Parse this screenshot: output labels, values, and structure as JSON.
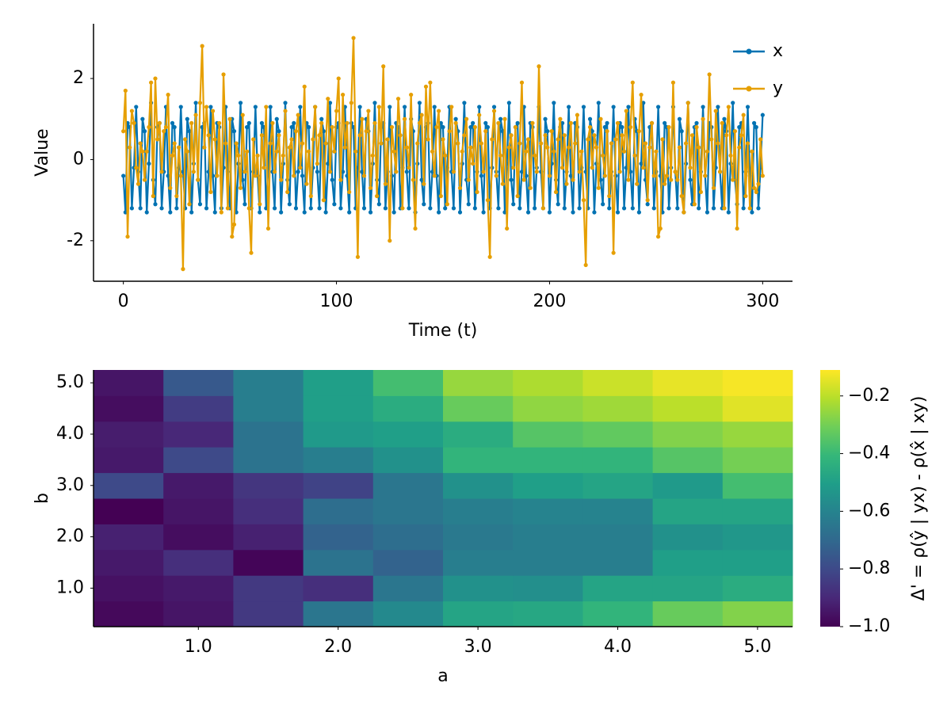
{
  "chart_data": [
    {
      "type": "line",
      "xlabel": "Time (t)",
      "ylabel": "Value",
      "xlim": [
        -14,
        314
      ],
      "ylim": [
        -3.0,
        3.35
      ],
      "xticks": [
        0,
        100,
        200,
        300
      ],
      "yticks": [
        -2,
        0,
        2
      ],
      "legend": "top-right",
      "x": [
        0,
        1,
        2,
        3,
        4,
        5,
        6,
        7,
        8,
        9,
        10,
        11,
        12,
        13,
        14,
        15,
        16,
        17,
        18,
        19,
        20,
        21,
        22,
        23,
        24,
        25,
        26,
        27,
        28,
        29,
        30,
        31,
        32,
        33,
        34,
        35,
        36,
        37,
        38,
        39,
        40,
        41,
        42,
        43,
        44,
        45,
        46,
        47,
        48,
        49,
        50,
        51,
        52,
        53,
        54,
        55,
        56,
        57,
        58,
        59,
        60,
        61,
        62,
        63,
        64,
        65,
        66,
        67,
        68,
        69,
        70,
        71,
        72,
        73,
        74,
        75,
        76,
        77,
        78,
        79,
        80,
        81,
        82,
        83,
        84,
        85,
        86,
        87,
        88,
        89,
        90,
        91,
        92,
        93,
        94,
        95,
        96,
        97,
        98,
        99,
        100,
        101,
        102,
        103,
        104,
        105,
        106,
        107,
        108,
        109,
        110,
        111,
        112,
        113,
        114,
        115,
        116,
        117,
        118,
        119,
        120,
        121,
        122,
        123,
        124,
        125,
        126,
        127,
        128,
        129,
        130,
        131,
        132,
        133,
        134,
        135,
        136,
        137,
        138,
        139,
        140,
        141,
        142,
        143,
        144,
        145,
        146,
        147,
        148,
        149,
        150,
        151,
        152,
        153,
        154,
        155,
        156,
        157,
        158,
        159,
        160,
        161,
        162,
        163,
        164,
        165,
        166,
        167,
        168,
        169,
        170,
        171,
        172,
        173,
        174,
        175,
        176,
        177,
        178,
        179,
        180,
        181,
        182,
        183,
        184,
        185,
        186,
        187,
        188,
        189,
        190,
        191,
        192,
        193,
        194,
        195,
        196,
        197,
        198,
        199,
        200,
        201,
        202,
        203,
        204,
        205,
        206,
        207,
        208,
        209,
        210,
        211,
        212,
        213,
        214,
        215,
        216,
        217,
        218,
        219,
        220,
        221,
        222,
        223,
        224,
        225,
        226,
        227,
        228,
        229,
        230,
        231,
        232,
        233,
        234,
        235,
        236,
        237,
        238,
        239,
        240,
        241,
        242,
        243,
        244,
        245,
        246,
        247,
        248,
        249,
        250,
        251,
        252,
        253,
        254,
        255,
        256,
        257,
        258,
        259,
        260,
        261,
        262,
        263,
        264,
        265,
        266,
        267,
        268,
        269,
        270,
        271,
        272,
        273,
        274,
        275,
        276,
        277,
        278,
        279,
        280,
        281,
        282,
        283,
        284,
        285,
        286,
        287,
        288,
        289,
        290,
        291,
        292,
        293,
        294,
        295,
        296,
        297,
        298,
        299,
        300
      ],
      "series": [
        {
          "name": "x",
          "color": "#0072b2",
          "values": [
            -0.4,
            -1.3,
            0.9,
            0.8,
            -1.2,
            -0.2,
            1.3,
            -0.3,
            -1.2,
            1.0,
            0.7,
            -1.3,
            -0.1,
            1.4,
            -0.5,
            -1.1,
            0.8,
            0.9,
            -1.2,
            -0.3,
            1.3,
            -0.4,
            -1.3,
            0.9,
            0.8,
            -1.2,
            -0.2,
            1.3,
            -0.3,
            -1.2,
            1.0,
            0.7,
            -1.3,
            -0.1,
            1.4,
            -0.5,
            -1.1,
            0.8,
            0.9,
            -1.2,
            -0.3,
            1.3,
            -0.4,
            -1.3,
            0.9,
            0.8,
            -1.2,
            -0.2,
            1.3,
            -0.3,
            -1.2,
            1.0,
            0.7,
            -1.3,
            -0.1,
            1.4,
            -0.5,
            -1.1,
            0.8,
            0.9,
            -1.2,
            -0.3,
            1.3,
            -0.4,
            -1.3,
            0.9,
            0.8,
            -1.2,
            -0.2,
            1.3,
            -0.3,
            -1.2,
            1.0,
            0.7,
            -1.3,
            -0.1,
            1.4,
            -0.5,
            -1.1,
            0.8,
            0.9,
            -1.2,
            -0.3,
            1.3,
            -0.4,
            -1.3,
            0.9,
            0.8,
            -1.2,
            -0.2,
            1.3,
            -0.3,
            -1.2,
            1.0,
            0.7,
            -1.3,
            -0.1,
            1.4,
            -0.5,
            -1.1,
            0.8,
            0.9,
            -1.2,
            -0.3,
            1.3,
            -0.4,
            -1.3,
            0.9,
            0.8,
            -1.2,
            -0.2,
            1.3,
            -0.3,
            -1.2,
            1.0,
            0.7,
            -1.3,
            -0.1,
            1.4,
            -0.5,
            -1.1,
            0.8,
            0.9,
            -1.2,
            -0.3,
            1.3,
            -0.4,
            -1.3,
            0.9,
            0.8,
            -1.2,
            -0.2,
            1.3,
            -0.3,
            -1.2,
            1.0,
            0.7,
            -1.3,
            -0.1,
            1.4,
            -0.5,
            -1.1,
            0.8,
            0.9,
            -1.2,
            -0.3,
            1.3,
            -0.4,
            -1.3,
            0.9,
            0.8,
            -1.2,
            -0.2,
            1.3,
            -0.3,
            -1.2,
            1.0,
            0.7,
            -1.3,
            -0.1,
            1.4,
            -0.5,
            -1.1,
            0.8,
            0.9,
            -1.2,
            -0.3,
            1.3,
            -0.4,
            -1.3,
            0.9,
            0.8,
            -1.2,
            -0.2,
            1.3,
            -0.3,
            -1.2,
            1.0,
            0.7,
            -1.3,
            -0.1,
            1.4,
            -0.5,
            -1.1,
            0.8,
            0.9,
            -1.2,
            -0.3,
            1.3,
            -0.4,
            -1.3,
            0.9,
            0.8,
            -1.2,
            -0.2,
            1.3,
            -0.3,
            -1.2,
            1.0,
            0.7,
            -1.3,
            -0.1,
            1.4,
            -0.5,
            -1.1,
            0.8,
            0.9,
            -1.2,
            -0.3,
            1.3,
            -0.4,
            -1.3,
            0.9,
            0.8,
            -1.2,
            -0.2,
            1.3,
            -0.3,
            -1.2,
            1.0,
            0.7,
            -1.3,
            -0.1,
            1.4,
            -0.5,
            -1.1,
            0.8,
            0.9,
            -1.2,
            -0.3,
            1.3,
            -0.4,
            -1.3,
            0.9,
            0.8,
            -1.2,
            -0.2,
            1.3,
            -0.3,
            -1.2,
            1.0,
            0.7,
            -1.3,
            -0.1,
            1.4,
            -0.5,
            -1.1,
            0.8,
            0.9,
            -1.2,
            -0.3,
            1.3,
            -0.4,
            -1.3,
            0.9,
            0.8,
            -1.2,
            -0.2,
            1.3,
            -0.3,
            -1.2,
            1.0,
            0.7,
            -1.3,
            -0.1,
            1.4,
            -0.5,
            -1.1,
            0.8,
            0.9,
            -1.2,
            -0.3,
            1.3,
            -0.4,
            -1.3,
            0.9,
            0.8,
            -1.2,
            -0.2,
            1.3,
            -0.3,
            -1.2,
            1.0,
            0.7,
            -1.3,
            -0.1,
            1.4,
            -0.5,
            -1.1,
            0.8,
            0.9,
            -1.2,
            -0.3,
            1.3,
            -0.4,
            -1.3,
            0.9,
            0.8,
            -1.2,
            -0.2,
            1.1
          ]
        },
        {
          "name": "y",
          "color": "#e69f00",
          "values": [
            0.7,
            1.7,
            -1.9,
            0.3,
            1.2,
            0.9,
            -0.2,
            -0.6,
            0.4,
            0.2,
            -0.5,
            0.2,
            0.8,
            1.9,
            -0.9,
            2.0,
            0.5,
            0.9,
            -0.3,
            0.7,
            0.8,
            1.6,
            -0.7,
            0.1,
            0.4,
            -0.9,
            0.3,
            -0.4,
            -2.7,
            0.5,
            0.2,
            -1.1,
            0.9,
            -0.3,
            1.1,
            -0.5,
            1.4,
            2.8,
            0.3,
            1.3,
            0.6,
            -0.8,
            1.2,
            0.5,
            -0.4,
            0.9,
            -1.3,
            2.1,
            0.4,
            -1.2,
            1.0,
            -1.9,
            -1.6,
            0.4,
            0.1,
            -0.7,
            1.1,
            -0.3,
            0.2,
            -1.2,
            -2.3,
            0.5,
            -0.4,
            0.1,
            -1.1,
            0.6,
            -0.2,
            1.3,
            -1.7,
            0.4,
            0.9,
            -0.3,
            0.2,
            0.6,
            -0.5,
            0.1,
            1.2,
            -0.8,
            0.3,
            0.5,
            -0.4,
            0.7,
            1.1,
            -0.2,
            0.4,
            1.8,
            -0.6,
            0.2,
            -0.9,
            0.5,
            1.3,
            -0.1,
            0.6,
            0.9,
            -1.0,
            0.4,
            1.5,
            -0.3,
            0.8,
            0.2,
            1.2,
            2.0,
            -0.5,
            1.6,
            0.3,
            0.9,
            -0.8,
            1.4,
            3.0,
            0.2,
            -2.4,
            0.6,
            1.0,
            -0.4,
            0.7,
            1.2,
            -0.7,
            0.1,
            0.9,
            -0.9,
            1.3,
            0.4,
            2.3,
            -0.6,
            0.5,
            -2.0,
            0.8,
            0.2,
            -0.3,
            1.5,
            0.6,
            -1.2,
            1.0,
            0.3,
            -0.2,
            1.6,
            -0.5,
            -1.7,
            0.4,
            0.9,
            1.1,
            -0.6,
            1.8,
            0.5,
            1.9,
            0.2,
            -0.4,
            0.8,
            1.2,
            -0.9,
            0.5,
            0.1,
            -1.1,
            0.7,
            1.3,
            -0.3,
            0.9,
            0.4,
            -0.7,
            0.2,
            0.6,
            1.0,
            -0.5,
            0.3,
            -0.1,
            0.8,
            -0.8,
            1.1,
            0.4,
            -0.3,
            0.7,
            -1.0,
            -2.4,
            0.5,
            1.2,
            -0.4,
            0.9,
            0.1,
            -0.6,
            1.0,
            -1.7,
            0.3,
            0.6,
            -0.2,
            0.8,
            -0.9,
            0.4,
            1.9,
            -0.5,
            0.2,
            0.5,
            -0.7,
            0.9,
            0.1,
            -0.3,
            2.3,
            0.4,
            -1.2,
            0.6,
            0.3,
            -0.4,
            0.7,
            0.2,
            -0.8,
            0.5,
            1.0,
            -0.2,
            0.6,
            -0.6,
            0.3,
            0.9,
            -0.5,
            0.4,
            1.1,
            -0.3,
            0.2,
            -1.0,
            -2.6,
            0.5,
            0.8,
            -0.2,
            0.6,
            0.3,
            -0.7,
            1.0,
            0.1,
            -0.4,
            0.7,
            -0.9,
            0.4,
            -2.3,
            0.5,
            0.9,
            -0.3,
            0.6,
            0.2,
            1.2,
            -0.5,
            0.8,
            1.9,
            0.1,
            -0.6,
            0.7,
            1.6,
            -0.2,
            0.4,
            -1.0,
            0.3,
            0.9,
            -0.4,
            0.2,
            -1.9,
            -1.7,
            0.5,
            -0.6,
            -0.4,
            0.8,
            -0.5,
            1.9,
            -0.3,
            -0.5,
            0.3,
            -0.9,
            -1.3,
            0.4,
            1.4,
            -0.2,
            0.6,
            -1.1,
            0.8,
            0.3,
            -0.8,
            1.0,
            -0.4,
            0.2,
            2.1,
            0.5,
            -0.7,
            1.2,
            0.4,
            -0.3,
            0.9,
            -1.2,
            0.6,
            1.3,
            0.1,
            -0.5,
            0.7,
            -1.7,
            0.3,
            0.6,
            1.1,
            -0.9,
            0.4,
            -1.2,
            0.2,
            -0.7,
            -0.8,
            -0.6,
            0.5,
            -0.4
          ]
        }
      ]
    },
    {
      "type": "heatmap",
      "xlabel": "a",
      "ylabel": "b",
      "x": [
        0.5,
        1.0,
        1.5,
        2.0,
        2.5,
        3.0,
        3.5,
        4.0,
        4.5,
        5.0
      ],
      "y": [
        0.5,
        1.0,
        1.5,
        2.0,
        2.5,
        3.0,
        3.5,
        4.0,
        4.5,
        5.0
      ],
      "z": [
        [
          -0.98,
          -0.95,
          -0.85,
          -0.65,
          -0.58,
          -0.48,
          -0.47,
          -0.42,
          -0.32,
          -0.28
        ],
        [
          -0.96,
          -0.94,
          -0.85,
          -0.88,
          -0.65,
          -0.55,
          -0.56,
          -0.48,
          -0.48,
          -0.45
        ],
        [
          -0.94,
          -0.88,
          -0.99,
          -0.66,
          -0.72,
          -0.62,
          -0.62,
          -0.62,
          -0.5,
          -0.5
        ],
        [
          -0.92,
          -0.97,
          -0.92,
          -0.72,
          -0.68,
          -0.64,
          -0.62,
          -0.62,
          -0.55,
          -0.53
        ],
        [
          -1.0,
          -0.95,
          -0.88,
          -0.68,
          -0.65,
          -0.62,
          -0.6,
          -0.6,
          -0.48,
          -0.48
        ],
        [
          -0.8,
          -0.94,
          -0.86,
          -0.82,
          -0.65,
          -0.55,
          -0.5,
          -0.48,
          -0.52,
          -0.38
        ],
        [
          -0.94,
          -0.8,
          -0.66,
          -0.62,
          -0.55,
          -0.42,
          -0.42,
          -0.42,
          -0.35,
          -0.3
        ],
        [
          -0.93,
          -0.9,
          -0.66,
          -0.52,
          -0.5,
          -0.45,
          -0.35,
          -0.33,
          -0.28,
          -0.25
        ],
        [
          -0.97,
          -0.84,
          -0.62,
          -0.5,
          -0.45,
          -0.32,
          -0.26,
          -0.24,
          -0.2,
          -0.15
        ],
        [
          -0.95,
          -0.75,
          -0.62,
          -0.5,
          -0.38,
          -0.25,
          -0.22,
          -0.18,
          -0.14,
          -0.12
        ]
      ],
      "xlim": [
        0.25,
        5.25
      ],
      "ylim": [
        0.25,
        5.25
      ],
      "xticks": [
        {
          "value": 1.0,
          "label": "1.0"
        },
        {
          "value": 2.0,
          "label": "2.0"
        },
        {
          "value": 3.0,
          "label": "3.0"
        },
        {
          "value": 4.0,
          "label": "4.0"
        },
        {
          "value": 5.0,
          "label": "5.0"
        }
      ],
      "yticks": [
        {
          "value": 1.0,
          "label": "1.0"
        },
        {
          "value": 2.0,
          "label": "2.0"
        },
        {
          "value": 3.0,
          "label": "3.0"
        },
        {
          "value": 4.0,
          "label": "4.0"
        },
        {
          "value": 5.0,
          "label": "5.0"
        }
      ],
      "colormap": "viridis",
      "colorbar_label": "Δ' = ρ(ŷ | yx) - ρ(x̂ | xy)",
      "zlim": [
        -1.0,
        -0.11
      ],
      "zticks": [
        {
          "value": -1.0,
          "label": "−1.0"
        },
        {
          "value": -0.8,
          "label": "−0.8"
        },
        {
          "value": -0.6,
          "label": "−0.6"
        },
        {
          "value": -0.4,
          "label": "−0.4"
        },
        {
          "value": -0.2,
          "label": "−0.2"
        }
      ]
    }
  ]
}
